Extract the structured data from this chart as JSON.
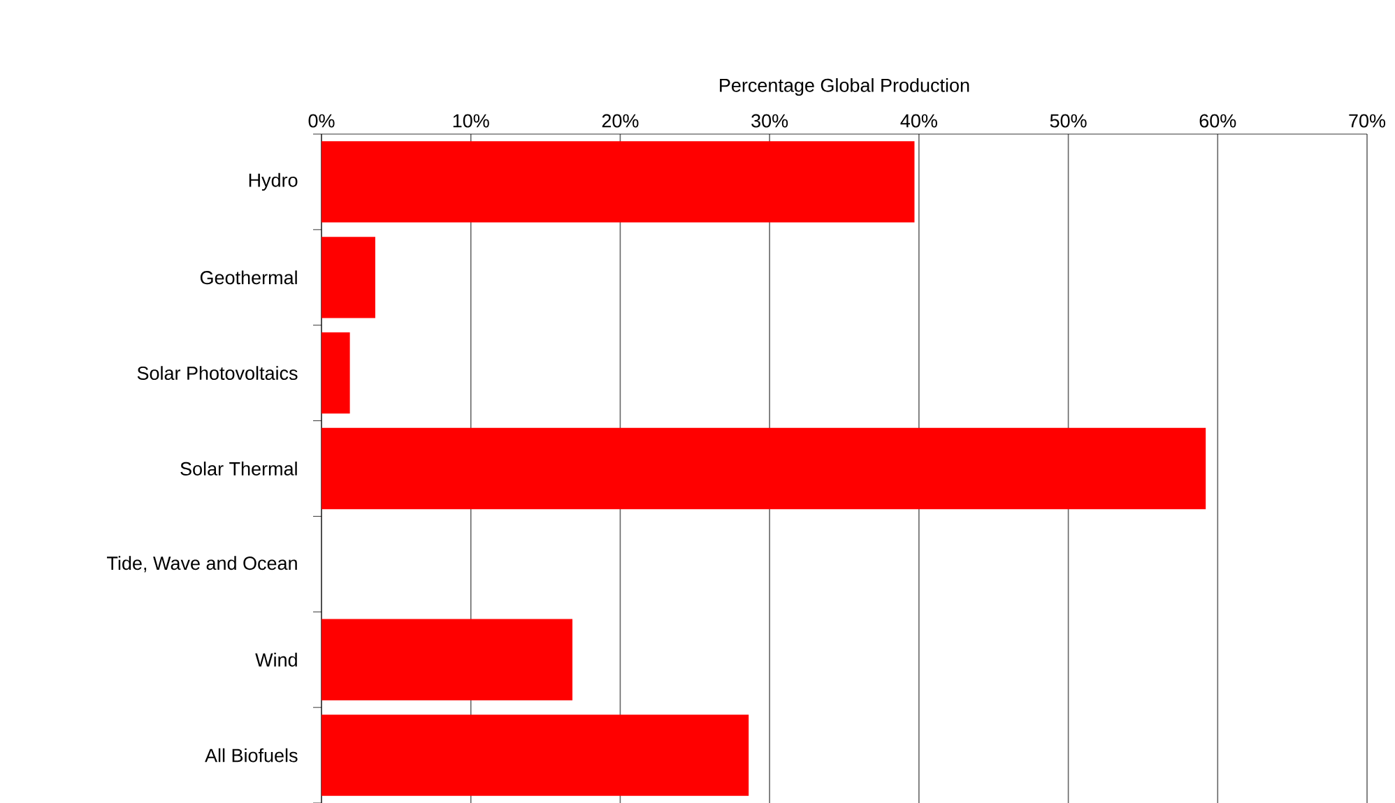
{
  "chart_data": {
    "type": "bar",
    "orientation": "horizontal",
    "xlabel": "Percentage Global Production",
    "categories": [
      "Hydro",
      "Geothermal",
      "Solar Photovoltaics",
      "Solar Thermal",
      "Tide, Wave and Ocean",
      "Wind",
      "All Biofuels"
    ],
    "values": [
      39.7,
      3.6,
      1.9,
      59.2,
      0,
      16.8,
      28.6
    ],
    "color": "#ff0000",
    "xlim": [
      0,
      70
    ],
    "xticks": [
      {
        "value": 0,
        "label": "0%"
      },
      {
        "value": 10,
        "label": "10%"
      },
      {
        "value": 20,
        "label": "20%"
      },
      {
        "value": 30,
        "label": "30%"
      },
      {
        "value": 40,
        "label": "40%"
      },
      {
        "value": 50,
        "label": "50%"
      },
      {
        "value": 60,
        "label": "60%"
      },
      {
        "value": 70,
        "label": "70%"
      }
    ],
    "grid": "x"
  }
}
